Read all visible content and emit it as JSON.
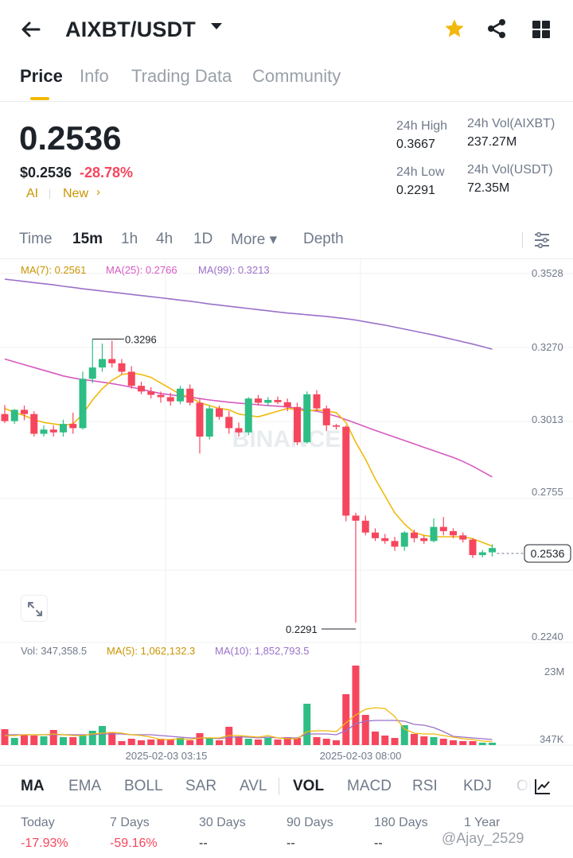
{
  "header": {
    "pair": "AIXBT/USDT",
    "icons": [
      "back-arrow-icon",
      "caret-down-icon",
      "star-icon",
      "share-icon",
      "grid-icon"
    ],
    "star_color": "#f0b90b"
  },
  "tabs": [
    "Price",
    "Info",
    "Trading Data",
    "Community"
  ],
  "ticker": {
    "last_price": "0.2536",
    "usd_price": "$0.2536",
    "change": "-28.78%",
    "tag_ai": "AI",
    "tag_new": "New",
    "tag_arrow": "›",
    "high_label": "24h High",
    "high": "0.3667",
    "low_label": "24h Low",
    "low": "0.2291",
    "vol_base_label": "24h Vol(AIXBT)",
    "vol_base": "237.27M",
    "vol_quote_label": "24h Vol(USDT)",
    "vol_quote": "72.35M"
  },
  "intervals": {
    "items": [
      "Time",
      "15m",
      "1h",
      "4h",
      "1D",
      "More ▾",
      "Depth"
    ],
    "active": "15m"
  },
  "chart_data": {
    "type": "candlestick",
    "watermark": "BINANCE",
    "ma_legend": [
      "MA(7): 0.2561",
      "MA(25): 0.2766",
      "MA(99): 0.3213"
    ],
    "y_axis_labels": [
      "0.3528",
      "0.3270",
      "0.3013",
      "0.2755",
      "0.2536",
      "0.2240"
    ],
    "current_price": "0.2536",
    "marker_high": "0.3296",
    "marker_low": "0.2291",
    "vol_legend": [
      "Vol: 347,358.5",
      "MA(5): 1,062,132.3",
      "MA(10): 1,852,793.5"
    ],
    "vol_axis_labels": [
      "23M",
      "347K"
    ],
    "x_labels": [
      "2025-02-03 03:15",
      "2025-02-03 08:00"
    ],
    "colors": {
      "up": "#2ebd85",
      "down": "#f6465d",
      "ma7": "#f0b90b",
      "ma25": "#d65ac0",
      "ma99": "#9a70c9"
    },
    "candles": [
      {
        "o": 0.303,
        "h": 0.3062,
        "l": 0.2998,
        "c": 0.3005
      },
      {
        "o": 0.3005,
        "h": 0.3048,
        "l": 0.2995,
        "c": 0.3045
      },
      {
        "o": 0.3045,
        "h": 0.306,
        "l": 0.3008,
        "c": 0.303
      },
      {
        "o": 0.303,
        "h": 0.304,
        "l": 0.295,
        "c": 0.296
      },
      {
        "o": 0.296,
        "h": 0.299,
        "l": 0.295,
        "c": 0.2975
      },
      {
        "o": 0.2975,
        "h": 0.299,
        "l": 0.295,
        "c": 0.2965
      },
      {
        "o": 0.2965,
        "h": 0.301,
        "l": 0.295,
        "c": 0.2995
      },
      {
        "o": 0.2995,
        "h": 0.3035,
        "l": 0.296,
        "c": 0.298
      },
      {
        "o": 0.298,
        "h": 0.318,
        "l": 0.2975,
        "c": 0.3155
      },
      {
        "o": 0.3155,
        "h": 0.3296,
        "l": 0.314,
        "c": 0.3195
      },
      {
        "o": 0.3195,
        "h": 0.328,
        "l": 0.318,
        "c": 0.3225
      },
      {
        "o": 0.3225,
        "h": 0.329,
        "l": 0.3195,
        "c": 0.321
      },
      {
        "o": 0.321,
        "h": 0.3225,
        "l": 0.317,
        "c": 0.318
      },
      {
        "o": 0.318,
        "h": 0.32,
        "l": 0.312,
        "c": 0.313
      },
      {
        "o": 0.313,
        "h": 0.3145,
        "l": 0.31,
        "c": 0.311
      },
      {
        "o": 0.311,
        "h": 0.3125,
        "l": 0.3085,
        "c": 0.3098
      },
      {
        "o": 0.3098,
        "h": 0.311,
        "l": 0.307,
        "c": 0.309
      },
      {
        "o": 0.309,
        "h": 0.3105,
        "l": 0.306,
        "c": 0.3075
      },
      {
        "o": 0.3075,
        "h": 0.313,
        "l": 0.3065,
        "c": 0.312
      },
      {
        "o": 0.312,
        "h": 0.3135,
        "l": 0.306,
        "c": 0.307
      },
      {
        "o": 0.307,
        "h": 0.3085,
        "l": 0.289,
        "c": 0.295
      },
      {
        "o": 0.295,
        "h": 0.306,
        "l": 0.294,
        "c": 0.305
      },
      {
        "o": 0.305,
        "h": 0.306,
        "l": 0.301,
        "c": 0.302
      },
      {
        "o": 0.302,
        "h": 0.304,
        "l": 0.296,
        "c": 0.298
      },
      {
        "o": 0.298,
        "h": 0.3,
        "l": 0.295,
        "c": 0.2965
      },
      {
        "o": 0.2965,
        "h": 0.309,
        "l": 0.2955,
        "c": 0.3085
      },
      {
        "o": 0.3085,
        "h": 0.3098,
        "l": 0.306,
        "c": 0.307
      },
      {
        "o": 0.307,
        "h": 0.309,
        "l": 0.306,
        "c": 0.308
      },
      {
        "o": 0.308,
        "h": 0.3092,
        "l": 0.3065,
        "c": 0.3072
      },
      {
        "o": 0.3072,
        "h": 0.3085,
        "l": 0.304,
        "c": 0.3055
      },
      {
        "o": 0.3055,
        "h": 0.307,
        "l": 0.292,
        "c": 0.293
      },
      {
        "o": 0.293,
        "h": 0.311,
        "l": 0.2925,
        "c": 0.31
      },
      {
        "o": 0.31,
        "h": 0.3115,
        "l": 0.304,
        "c": 0.305
      },
      {
        "o": 0.305,
        "h": 0.306,
        "l": 0.297,
        "c": 0.299
      },
      {
        "o": 0.299,
        "h": 0.2995,
        "l": 0.2975,
        "c": 0.2985
      },
      {
        "o": 0.2985,
        "h": 0.299,
        "l": 0.265,
        "c": 0.267
      },
      {
        "o": 0.267,
        "h": 0.268,
        "l": 0.2291,
        "c": 0.2652
      },
      {
        "o": 0.2652,
        "h": 0.267,
        "l": 0.26,
        "c": 0.261
      },
      {
        "o": 0.261,
        "h": 0.2625,
        "l": 0.258,
        "c": 0.259
      },
      {
        "o": 0.259,
        "h": 0.2605,
        "l": 0.257,
        "c": 0.258
      },
      {
        "o": 0.258,
        "h": 0.2595,
        "l": 0.2545,
        "c": 0.256
      },
      {
        "o": 0.256,
        "h": 0.2615,
        "l": 0.2545,
        "c": 0.261
      },
      {
        "o": 0.261,
        "h": 0.262,
        "l": 0.2575,
        "c": 0.259
      },
      {
        "o": 0.259,
        "h": 0.26,
        "l": 0.257,
        "c": 0.258
      },
      {
        "o": 0.258,
        "h": 0.266,
        "l": 0.2575,
        "c": 0.263
      },
      {
        "o": 0.263,
        "h": 0.2665,
        "l": 0.26,
        "c": 0.2615
      },
      {
        "o": 0.2615,
        "h": 0.2625,
        "l": 0.259,
        "c": 0.26
      },
      {
        "o": 0.26,
        "h": 0.261,
        "l": 0.2575,
        "c": 0.2585
      },
      {
        "o": 0.2585,
        "h": 0.259,
        "l": 0.252,
        "c": 0.253
      },
      {
        "o": 0.253,
        "h": 0.2548,
        "l": 0.2522,
        "c": 0.254
      },
      {
        "o": 0.254,
        "h": 0.2568,
        "l": 0.2525,
        "c": 0.2555
      }
    ],
    "ma7": [
      0.305,
      0.3035,
      0.3025,
      0.301,
      0.3,
      0.2995,
      0.299,
      0.2995,
      0.303,
      0.308,
      0.312,
      0.315,
      0.317,
      0.3175,
      0.317,
      0.316,
      0.314,
      0.312,
      0.31,
      0.309,
      0.307,
      0.306,
      0.305,
      0.3045,
      0.303,
      0.3025,
      0.302,
      0.303,
      0.304,
      0.305,
      0.3045,
      0.304,
      0.3045,
      0.304,
      0.3035,
      0.3,
      0.293,
      0.287,
      0.28,
      0.274,
      0.268,
      0.264,
      0.261,
      0.26,
      0.2595,
      0.2595,
      0.2595,
      0.2595,
      0.2588,
      0.2575,
      0.2562
    ],
    "ma25": [
      0.3225,
      0.3215,
      0.3205,
      0.3195,
      0.3185,
      0.3175,
      0.3165,
      0.3158,
      0.3152,
      0.3148,
      0.3143,
      0.3138,
      0.3132,
      0.3125,
      0.3118,
      0.311,
      0.3103,
      0.3098,
      0.3094,
      0.309,
      0.3085,
      0.308,
      0.3076,
      0.3072,
      0.3069,
      0.3066,
      0.3063,
      0.306,
      0.3058,
      0.3055,
      0.305,
      0.3045,
      0.304,
      0.3032,
      0.3022,
      0.301,
      0.2998,
      0.2985,
      0.2972,
      0.296,
      0.2948,
      0.2936,
      0.2924,
      0.2912,
      0.29,
      0.2888,
      0.2876,
      0.2862,
      0.2845,
      0.2826,
      0.2807
    ],
    "ma99": [
      0.3508,
      0.3504,
      0.35,
      0.3496,
      0.3492,
      0.3488,
      0.3483,
      0.3479,
      0.3474,
      0.347,
      0.3466,
      0.3462,
      0.3458,
      0.3454,
      0.345,
      0.3446,
      0.3442,
      0.3438,
      0.3434,
      0.343,
      0.3425,
      0.342,
      0.3416,
      0.3412,
      0.3408,
      0.3404,
      0.34,
      0.3396,
      0.3392,
      0.3388,
      0.3385,
      0.3382,
      0.3379,
      0.3376,
      0.3372,
      0.3368,
      0.3363,
      0.3357,
      0.3351,
      0.3345,
      0.3338,
      0.3331,
      0.3324,
      0.3317,
      0.331,
      0.3302,
      0.3294,
      0.3286,
      0.3278,
      0.3269,
      0.326
    ],
    "volumes": [
      2.0,
      0.9,
      1.3,
      1.2,
      1.1,
      1.9,
      1.0,
      1.0,
      1.2,
      1.8,
      2.4,
      1.6,
      0.5,
      0.8,
      0.6,
      0.7,
      0.8,
      0.7,
      0.9,
      0.6,
      1.5,
      0.9,
      0.6,
      2.3,
      1.1,
      0.8,
      0.7,
      0.9,
      0.7,
      1.0,
      0.9,
      5.2,
      1.0,
      0.8,
      0.6,
      6.4,
      10.0,
      3.8,
      1.7,
      1.2,
      0.9,
      2.5,
      1.4,
      1.1,
      1.0,
      0.8,
      0.6,
      0.5,
      0.5,
      0.3,
      0.3
    ],
    "vol_ma5": [
      1.2,
      1.2,
      1.3,
      1.3,
      1.3,
      1.4,
      1.3,
      1.2,
      1.2,
      1.4,
      1.5,
      1.6,
      1.5,
      1.3,
      1.2,
      1.0,
      0.7,
      0.7,
      0.8,
      0.7,
      0.9,
      0.9,
      0.9,
      1.2,
      1.2,
      1.1,
      1.0,
      1.2,
      0.9,
      0.8,
      0.8,
      1.7,
      1.8,
      1.8,
      1.7,
      2.8,
      3.8,
      4.5,
      4.7,
      4.6,
      3.6,
      2.0,
      1.5,
      1.4,
      1.4,
      1.2,
      1.0,
      0.8,
      0.7,
      0.5,
      0.45
    ],
    "vol_ma10": [
      1.3,
      1.3,
      1.3,
      1.3,
      1.3,
      1.3,
      1.3,
      1.3,
      1.3,
      1.3,
      1.4,
      1.4,
      1.4,
      1.3,
      1.3,
      1.3,
      1.2,
      1.1,
      1.0,
      0.9,
      0.9,
      0.9,
      0.8,
      1.0,
      1.0,
      1.0,
      0.9,
      1.0,
      0.9,
      0.9,
      0.9,
      1.4,
      1.4,
      1.4,
      1.3,
      1.8,
      2.7,
      3.0,
      3.1,
      3.1,
      3.1,
      3.0,
      2.6,
      2.5,
      2.2,
      1.7,
      1.1,
      1.0,
      0.9,
      0.8,
      0.7
    ]
  },
  "indicators": {
    "items": [
      "MA",
      "EMA",
      "BOLL",
      "SAR",
      "AVL",
      "VOL",
      "MACD",
      "RSI",
      "KDJ",
      "OI"
    ],
    "active_main": "MA",
    "active_sub": "VOL"
  },
  "performance": [
    {
      "label": "Today",
      "value": "-17.93%"
    },
    {
      "label": "7 Days",
      "value": "-59.16%"
    },
    {
      "label": "30 Days",
      "value": "--"
    },
    {
      "label": "90 Days",
      "value": "--"
    },
    {
      "label": "180 Days",
      "value": "--"
    },
    {
      "label": "1 Year",
      "value": ""
    }
  ],
  "watermark_user": "@Ajay_2529"
}
